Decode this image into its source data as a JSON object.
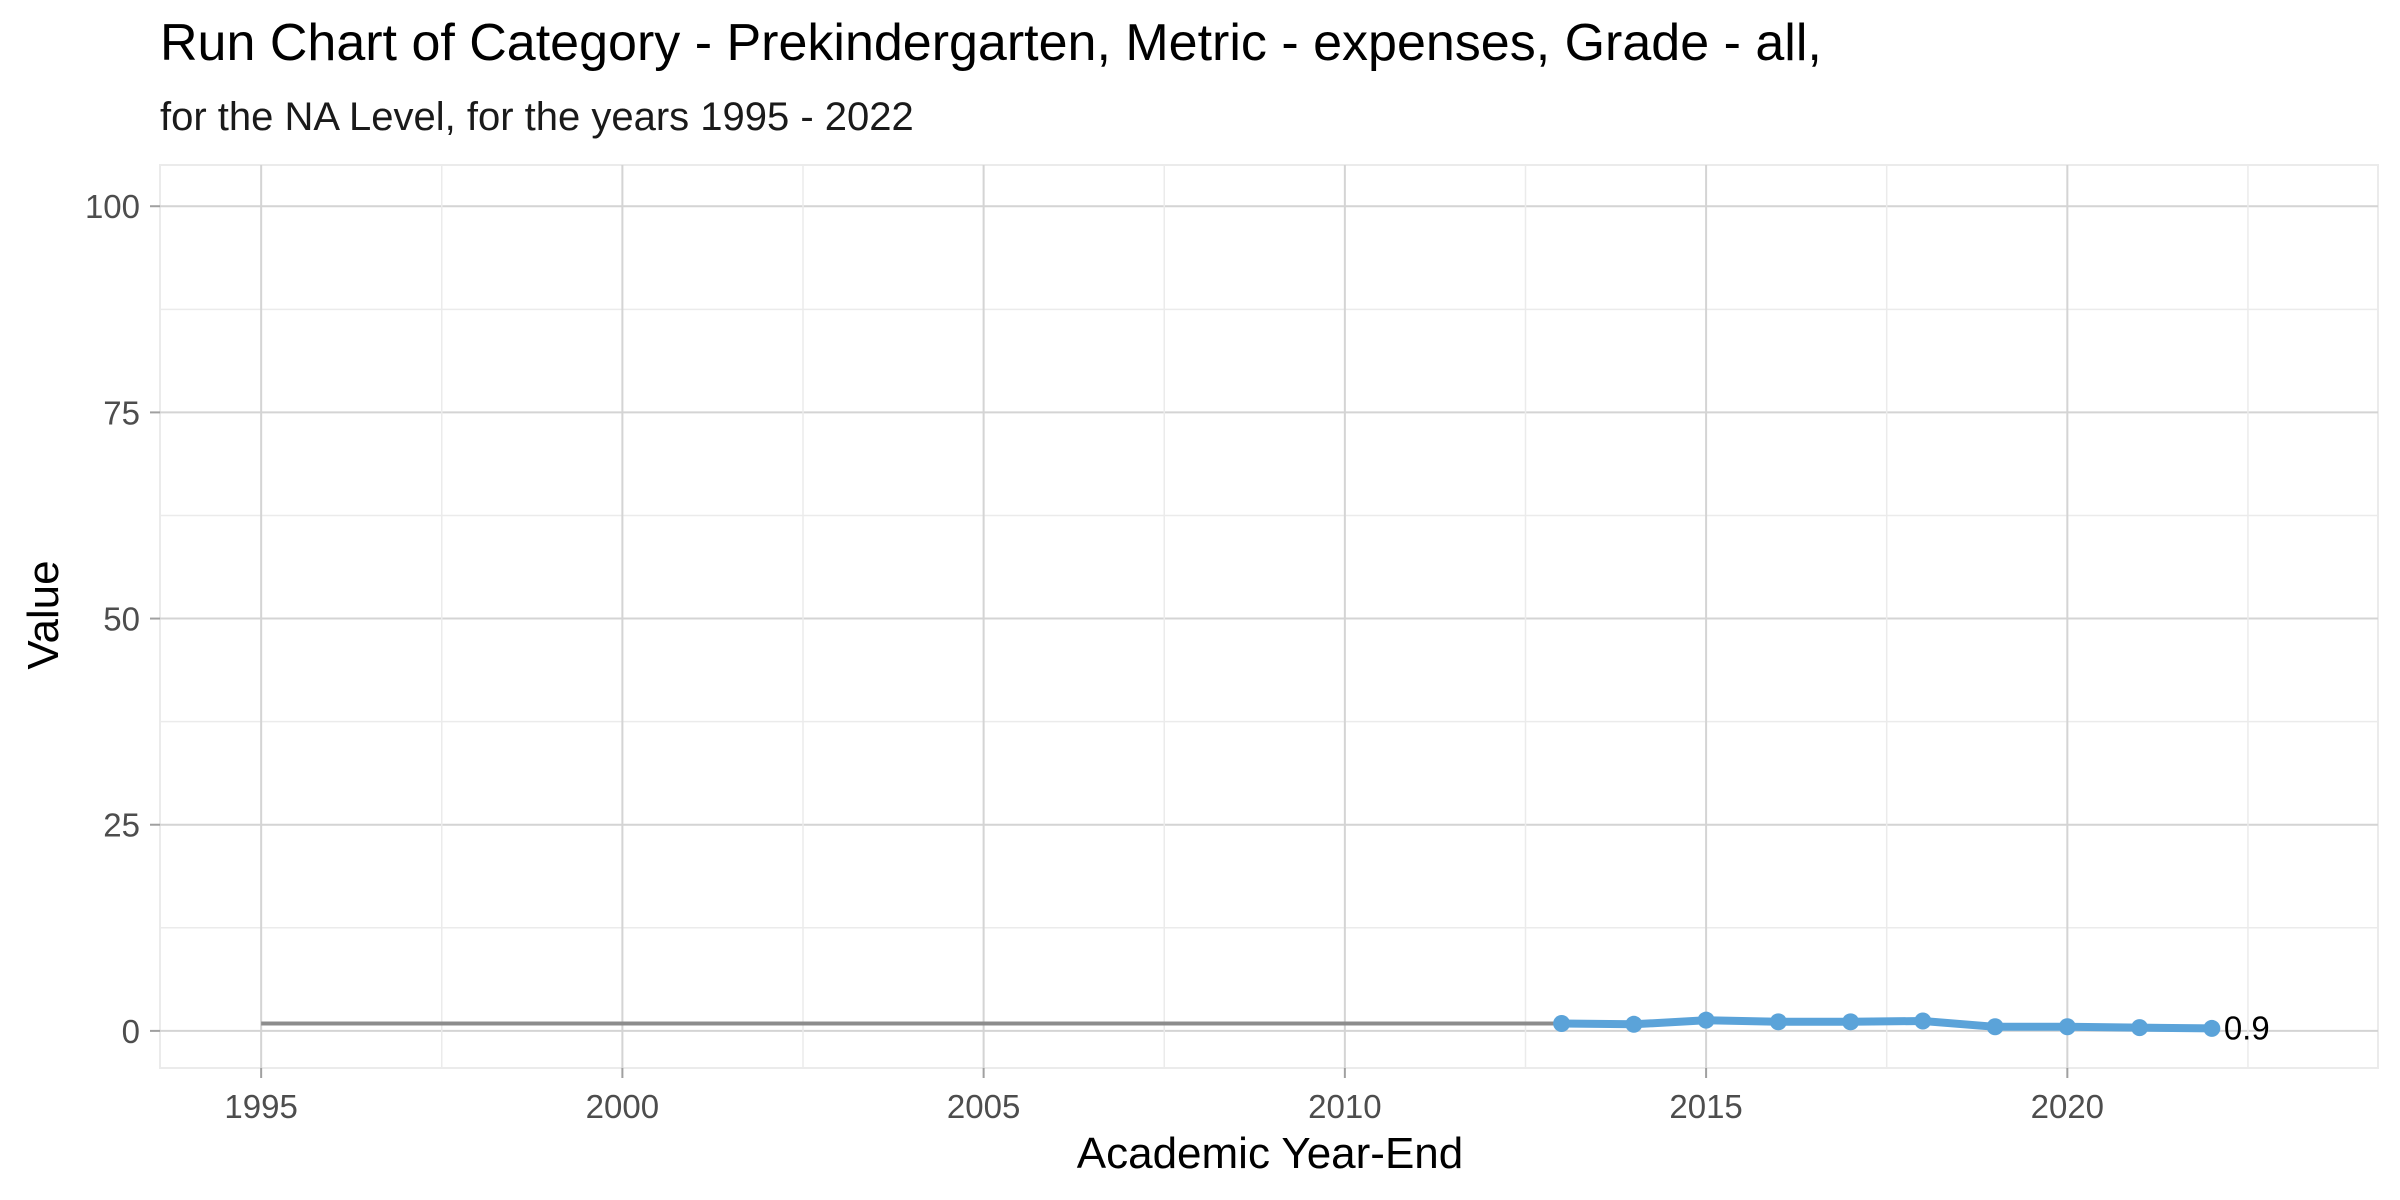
{
  "chart_data": {
    "type": "line",
    "title": "Run Chart of Category -  Prekindergarten, Metric - expenses, Grade - all,",
    "subtitle": "for the NA Level, for the years 1995 - 2022",
    "xlabel": "Academic Year-End",
    "ylabel": "Value",
    "xlim": [
      1993.6,
      2024.3
    ],
    "ylim": [
      -4.5,
      105
    ],
    "x_ticks": [
      1995,
      2000,
      2005,
      2010,
      2015,
      2020
    ],
    "y_ticks": [
      0,
      25,
      50,
      75,
      100
    ],
    "grid": true,
    "baseline": {
      "x_start": 1995,
      "x_end": 2013,
      "value": 0.9,
      "color": "#8c8c8c"
    },
    "series": [
      {
        "color": "#5ba3d9",
        "x": [
          2013,
          2014,
          2015,
          2016,
          2017,
          2018,
          2019,
          2020,
          2021,
          2022
        ],
        "values": [
          0.9,
          0.8,
          1.3,
          1.1,
          1.1,
          1.2,
          0.5,
          0.5,
          0.4,
          0.3
        ]
      }
    ],
    "end_label": "0.9"
  }
}
